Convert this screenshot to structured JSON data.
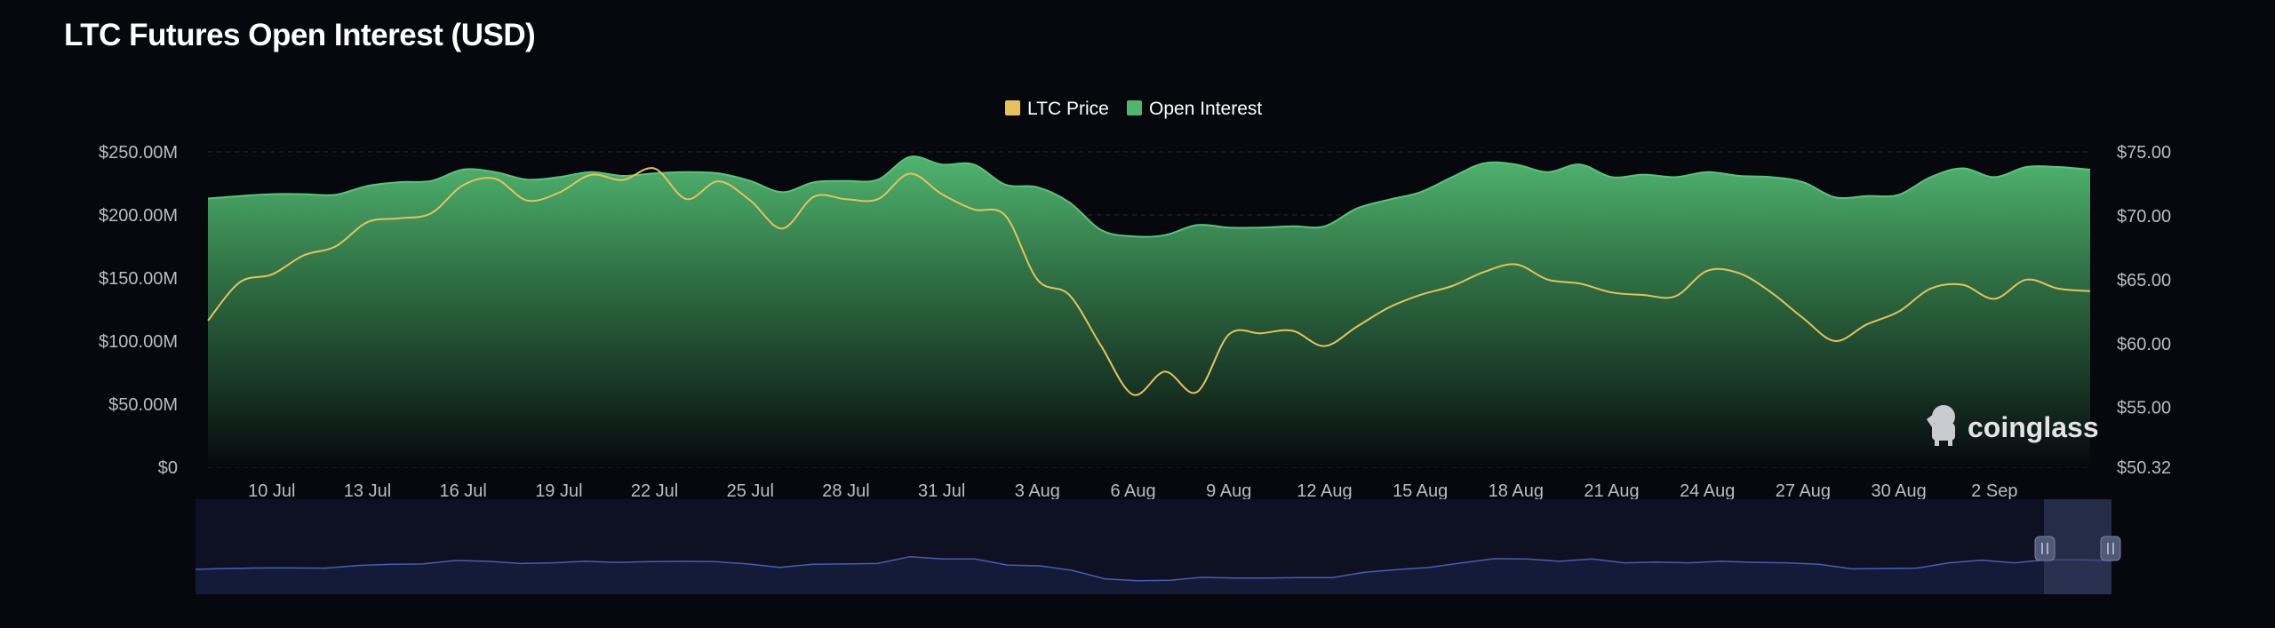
{
  "page": {
    "title": "LTC Futures Open Interest (USD)"
  },
  "watermark": {
    "text": "coinglass"
  },
  "colors": {
    "background": "#07080d",
    "open_interest": "#4fb56f",
    "ltc_price": "#e6c35a",
    "navigator_line": "#4a5cb8",
    "navigator_fill": "#131a33"
  },
  "chart_data": {
    "type": "area",
    "title": "LTC Futures Open Interest (USD)",
    "legend": {
      "position": "top-center",
      "entries": [
        "LTC Price",
        "Open Interest"
      ]
    },
    "grid": true,
    "x_tick_labels": [
      "10 Jul",
      "13 Jul",
      "16 Jul",
      "19 Jul",
      "22 Jul",
      "25 Jul",
      "28 Jul",
      "31 Jul",
      "3 Aug",
      "6 Aug",
      "9 Aug",
      "12 Aug",
      "15 Aug",
      "18 Aug",
      "21 Aug",
      "24 Aug",
      "27 Aug",
      "30 Aug",
      "2 Sep"
    ],
    "x_range": [
      "8 Jul",
      "5 Sep"
    ],
    "y_left": {
      "label": "",
      "range": [
        0,
        250000000
      ],
      "tick_labels": [
        "$0",
        "$50.00M",
        "$100.00M",
        "$150.00M",
        "$200.00M",
        "$250.00M"
      ]
    },
    "y_right": {
      "label": "",
      "range": [
        50.32,
        75
      ],
      "tick_labels": [
        "$50.32",
        "$55.00",
        "$60.00",
        "$65.00",
        "$70.00",
        "$75.00"
      ]
    },
    "series": [
      {
        "name": "Open Interest",
        "axis": "left",
        "type": "area",
        "x": [
          "8 Jul",
          "9 Jul",
          "10 Jul",
          "11 Jul",
          "12 Jul",
          "13 Jul",
          "14 Jul",
          "15 Jul",
          "16 Jul",
          "17 Jul",
          "18 Jul",
          "19 Jul",
          "20 Jul",
          "21 Jul",
          "22 Jul",
          "23 Jul",
          "24 Jul",
          "25 Jul",
          "26 Jul",
          "27 Jul",
          "28 Jul",
          "29 Jul",
          "30 Jul",
          "31 Jul",
          "1 Aug",
          "2 Aug",
          "3 Aug",
          "4 Aug",
          "5 Aug",
          "6 Aug",
          "7 Aug",
          "8 Aug",
          "9 Aug",
          "10 Aug",
          "11 Aug",
          "12 Aug",
          "13 Aug",
          "14 Aug",
          "15 Aug",
          "16 Aug",
          "17 Aug",
          "18 Aug",
          "19 Aug",
          "20 Aug",
          "21 Aug",
          "22 Aug",
          "23 Aug",
          "24 Aug",
          "25 Aug",
          "26 Aug",
          "27 Aug",
          "28 Aug",
          "29 Aug",
          "30 Aug",
          "31 Aug",
          "1 Sep",
          "2 Sep",
          "3 Sep",
          "4 Sep",
          "5 Sep"
        ],
        "values": [
          213000000,
          215000000,
          216500000,
          216500000,
          216000000,
          223000000,
          226000000,
          227000000,
          236000000,
          234000000,
          228000000,
          230000000,
          234000000,
          231000000,
          233000000,
          234000000,
          233000000,
          227000000,
          218000000,
          226000000,
          227000000,
          228000000,
          246000000,
          240000000,
          240000000,
          224000000,
          222000000,
          210000000,
          188000000,
          183000000,
          184000000,
          192000000,
          190000000,
          190000000,
          191000000,
          191000000,
          205000000,
          212000000,
          218000000,
          230000000,
          241000000,
          240000000,
          234000000,
          240000000,
          230000000,
          232000000,
          230000000,
          234000000,
          231000000,
          230000000,
          226000000,
          214000000,
          215000000,
          216000000,
          230000000,
          237000000,
          230000000,
          238000000,
          238000000,
          236000000
        ]
      },
      {
        "name": "LTC Price",
        "axis": "right",
        "type": "line",
        "x": [
          "8 Jul",
          "9 Jul",
          "10 Jul",
          "11 Jul",
          "12 Jul",
          "13 Jul",
          "14 Jul",
          "15 Jul",
          "16 Jul",
          "17 Jul",
          "18 Jul",
          "19 Jul",
          "20 Jul",
          "21 Jul",
          "22 Jul",
          "23 Jul",
          "24 Jul",
          "25 Jul",
          "26 Jul",
          "27 Jul",
          "28 Jul",
          "29 Jul",
          "30 Jul",
          "31 Jul",
          "1 Aug",
          "2 Aug",
          "3 Aug",
          "4 Aug",
          "5 Aug",
          "6 Aug",
          "7 Aug",
          "8 Aug",
          "9 Aug",
          "10 Aug",
          "11 Aug",
          "12 Aug",
          "13 Aug",
          "14 Aug",
          "15 Aug",
          "16 Aug",
          "17 Aug",
          "18 Aug",
          "19 Aug",
          "20 Aug",
          "21 Aug",
          "22 Aug",
          "23 Aug",
          "24 Aug",
          "25 Aug",
          "26 Aug",
          "27 Aug",
          "28 Aug",
          "29 Aug",
          "30 Aug",
          "31 Aug",
          "1 Sep",
          "2 Sep",
          "3 Sep",
          "4 Sep",
          "5 Sep"
        ],
        "values": [
          61.8,
          64.8,
          65.4,
          66.9,
          67.6,
          69.5,
          69.8,
          70.2,
          72.4,
          72.9,
          71.2,
          71.8,
          73.2,
          72.8,
          73.7,
          71.3,
          72.7,
          71.2,
          69.0,
          71.5,
          71.3,
          71.3,
          73.3,
          71.7,
          70.5,
          70.0,
          65.0,
          63.8,
          59.8,
          56.0,
          57.8,
          56.2,
          60.7,
          60.8,
          61.0,
          59.8,
          61.3,
          62.8,
          63.8,
          64.5,
          65.6,
          66.2,
          65.0,
          64.7,
          64.0,
          63.8,
          63.7,
          65.7,
          65.5,
          64.0,
          62.0,
          60.2,
          61.5,
          62.5,
          64.3,
          64.6,
          63.5,
          65.0,
          64.3,
          64.1
        ]
      }
    ]
  }
}
